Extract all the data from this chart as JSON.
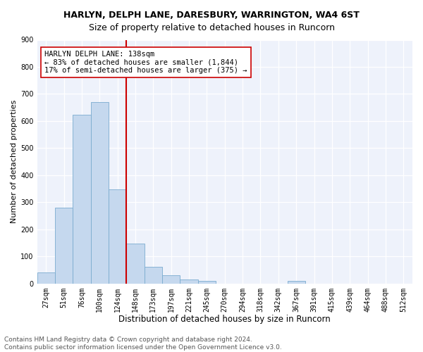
{
  "title": "HARLYN, DELPH LANE, DARESBURY, WARRINGTON, WA4 6ST",
  "subtitle": "Size of property relative to detached houses in Runcorn",
  "xlabel": "Distribution of detached houses by size in Runcorn",
  "ylabel": "Number of detached properties",
  "bar_labels": [
    "27sqm",
    "51sqm",
    "76sqm",
    "100sqm",
    "124sqm",
    "148sqm",
    "173sqm",
    "197sqm",
    "221sqm",
    "245sqm",
    "270sqm",
    "294sqm",
    "318sqm",
    "342sqm",
    "367sqm",
    "391sqm",
    "415sqm",
    "439sqm",
    "464sqm",
    "488sqm",
    "512sqm"
  ],
  "bar_heights": [
    42,
    280,
    622,
    670,
    348,
    148,
    62,
    30,
    14,
    10,
    0,
    0,
    0,
    0,
    10,
    0,
    0,
    0,
    0,
    0,
    0
  ],
  "bar_color": "#c5d8ee",
  "bar_edge_color": "#7aabcf",
  "vline_x": 4.5,
  "vline_color": "#cc0000",
  "annotation_text": "HARLYN DELPH LANE: 138sqm\n← 83% of detached houses are smaller (1,844)\n17% of semi-detached houses are larger (375) →",
  "annotation_box_color": "#ffffff",
  "annotation_box_edge": "#cc0000",
  "ylim": [
    0,
    900
  ],
  "yticks": [
    0,
    100,
    200,
    300,
    400,
    500,
    600,
    700,
    800,
    900
  ],
  "background_color": "#ffffff",
  "plot_background": "#eef2fb",
  "grid_color": "#ffffff",
  "footer_text": "Contains HM Land Registry data © Crown copyright and database right 2024.\nContains public sector information licensed under the Open Government Licence v3.0.",
  "title_fontsize": 9,
  "subtitle_fontsize": 9,
  "xlabel_fontsize": 8.5,
  "ylabel_fontsize": 8,
  "tick_fontsize": 7,
  "annotation_fontsize": 7.5,
  "footer_fontsize": 6.5
}
